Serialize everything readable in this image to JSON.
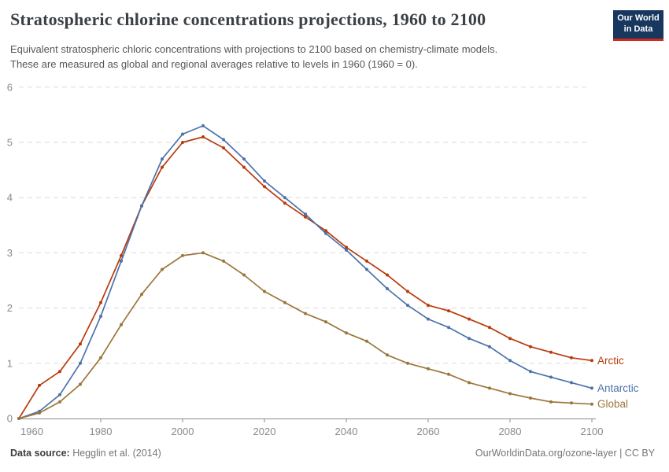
{
  "header": {
    "title": "Stratospheric chlorine concentrations projections, 1960 to 2100",
    "subtitle_line1": "Equivalent stratospheric chloric concentrations with projections to 2100 based on chemistry-climate models.",
    "subtitle_line2": "These are measured as global and regional averages relative to levels in 1960 (1960 = 0).",
    "logo_line1": "Our World",
    "logo_line2": "in Data"
  },
  "chart_data": {
    "type": "line",
    "title": "Stratospheric chlorine concentrations projections, 1960 to 2100",
    "xlabel": "",
    "ylabel": "",
    "xlim": [
      1960,
      2100
    ],
    "ylim": [
      0,
      6
    ],
    "x_ticks": [
      1960,
      1980,
      2000,
      2020,
      2040,
      2060,
      2080,
      2100
    ],
    "y_ticks": [
      0,
      1,
      2,
      3,
      4,
      5,
      6
    ],
    "grid": "horizontal-dashed",
    "legend_position": "line-end-labels",
    "x": [
      1960,
      1965,
      1970,
      1975,
      1980,
      1985,
      1990,
      1995,
      2000,
      2005,
      2010,
      2015,
      2020,
      2025,
      2030,
      2035,
      2040,
      2045,
      2050,
      2055,
      2060,
      2065,
      2070,
      2075,
      2080,
      2085,
      2090,
      2095,
      2100
    ],
    "series": [
      {
        "name": "Arctic",
        "color": "#B93A0B",
        "values": [
          0,
          0.6,
          0.85,
          1.35,
          2.1,
          2.95,
          3.85,
          4.55,
          5.0,
          5.1,
          4.9,
          4.55,
          4.2,
          3.9,
          3.65,
          3.4,
          3.1,
          2.85,
          2.6,
          2.3,
          2.05,
          1.95,
          1.8,
          1.65,
          1.45,
          1.3,
          1.2,
          1.1,
          1.05
        ]
      },
      {
        "name": "Antarctic",
        "color": "#4C72A9",
        "values": [
          0,
          0.13,
          0.43,
          1.0,
          1.85,
          2.85,
          3.85,
          4.7,
          5.15,
          5.3,
          5.05,
          4.7,
          4.3,
          4.0,
          3.7,
          3.35,
          3.05,
          2.7,
          2.35,
          2.05,
          1.8,
          1.65,
          1.45,
          1.3,
          1.05,
          0.85,
          0.75,
          0.65,
          0.55
        ]
      },
      {
        "name": "Global",
        "color": "#9B763B",
        "values": [
          0,
          0.1,
          0.3,
          0.62,
          1.1,
          1.7,
          2.25,
          2.7,
          2.95,
          3.0,
          2.85,
          2.6,
          2.3,
          2.1,
          1.9,
          1.75,
          1.55,
          1.4,
          1.15,
          1.0,
          0.9,
          0.8,
          0.65,
          0.55,
          0.45,
          0.37,
          0.3,
          0.28,
          0.26
        ]
      }
    ],
    "axis_color": "#8c8c8c",
    "grid_color": "#d9d9d9",
    "tick_label_color": "#8a8a8a"
  },
  "footer": {
    "source_label": "Data source:",
    "source_value": " Hegglin et al. (2014)",
    "credit": "OurWorldinData.org/ozone-layer | CC BY"
  }
}
